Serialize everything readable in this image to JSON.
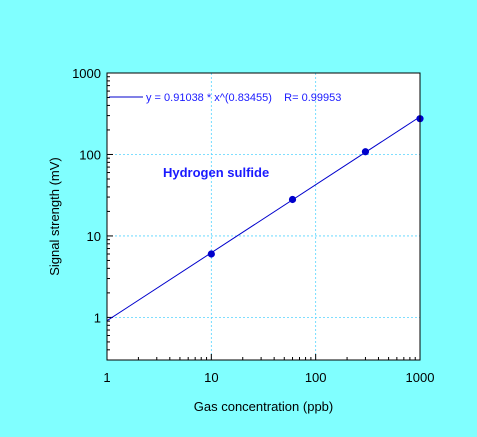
{
  "colors": {
    "background": "#80ffff",
    "plot_background": "#ffffff",
    "series": "#0000cc",
    "grid": "#55d4ff",
    "annotation": "#1a1aff"
  },
  "chart_data": {
    "type": "scatter",
    "title": "",
    "xlabel": "Gas concentration (ppb)",
    "ylabel": "Signal strength (mV)",
    "x_scale": "log",
    "y_scale": "log",
    "xlim": [
      1,
      1000
    ],
    "ylim": [
      0.3,
      1000
    ],
    "x_ticks": [
      1,
      10,
      100,
      1000
    ],
    "x_tick_labels": [
      "1",
      "10",
      "100",
      "1000"
    ],
    "y_ticks": [
      1,
      10,
      100,
      1000
    ],
    "y_tick_labels": [
      "1",
      "10",
      "100",
      "1000"
    ],
    "grid": true,
    "series": [
      {
        "x": [
          10,
          60,
          300,
          1000
        ],
        "y": [
          6,
          28,
          108,
          275
        ]
      }
    ],
    "fit": {
      "model": "power",
      "a": 0.91038,
      "b": 0.83455,
      "x_range": [
        1,
        1000
      ]
    },
    "legend": {
      "position": "top-left",
      "text": "y = 0.91038 * x^(0.83455)    R= 0.99953"
    },
    "annotations": [
      {
        "text": "Hydrogen sulfide"
      }
    ]
  }
}
